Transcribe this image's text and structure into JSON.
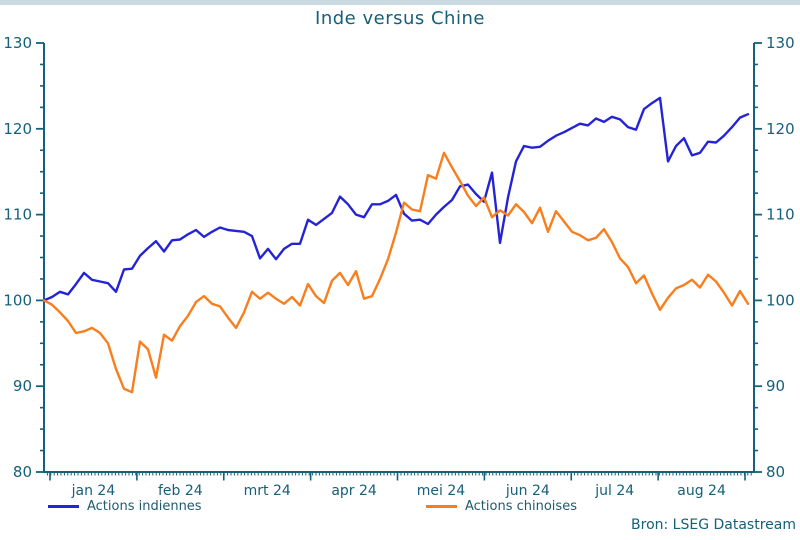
{
  "title": "Inde versus Chine",
  "source": "Bron: LSEG Datastream",
  "colors": {
    "text_teal": "#15607A",
    "axis_teal": "#15607A",
    "legend_text": "#1E5A70",
    "top_band": "#CBD9E2",
    "background": "#FFFFFF",
    "india_blue": "#2424D6",
    "china_orange": "#F87E1E"
  },
  "legend": {
    "items": [
      {
        "label": "Actions indiennes",
        "color": "#2424D6"
      },
      {
        "label": "Actions chinoises",
        "color": "#F87E1E"
      }
    ]
  },
  "chart_data": {
    "type": "line",
    "title": "Inde versus Chine",
    "subtitle": "",
    "xlabel": "",
    "ylabel": "",
    "index_base": 100,
    "ylim": [
      80,
      130
    ],
    "y_ticks": [
      80,
      90,
      100,
      110,
      120,
      130
    ],
    "y_minor_step": 2.5,
    "dual_axis_labels": true,
    "grid": false,
    "legend_position": "bottom",
    "x_tick_labels": [
      "jan 24",
      "feb 24",
      "mrt 24",
      "apr 24",
      "mei 24",
      "jun 24",
      "jul 24",
      "aug 24"
    ],
    "series": [
      {
        "name": "Actions indiennes",
        "color": "#2424D6",
        "values": [
          100.0,
          100.4,
          101.0,
          100.7,
          101.9,
          103.2,
          102.4,
          102.2,
          102.0,
          101.0,
          103.6,
          103.7,
          105.2,
          106.1,
          106.9,
          105.7,
          107.0,
          107.1,
          107.7,
          108.2,
          107.4,
          108.0,
          108.5,
          108.2,
          108.1,
          108.0,
          107.5,
          104.9,
          106.0,
          104.8,
          106.0,
          106.6,
          106.6,
          109.4,
          108.8,
          109.5,
          110.2,
          112.1,
          111.2,
          110.0,
          109.7,
          111.2,
          111.2,
          111.6,
          112.3,
          110.1,
          109.3,
          109.4,
          108.9,
          110.0,
          110.9,
          111.7,
          113.3,
          113.5,
          112.4,
          111.5,
          114.9,
          106.7,
          112.0,
          116.2,
          118.0,
          117.8,
          117.9,
          118.6,
          119.2,
          119.6,
          120.1,
          120.6,
          120.4,
          121.2,
          120.8,
          121.4,
          121.1,
          120.2,
          119.9,
          122.3,
          123.0,
          123.6,
          116.2,
          118.0,
          118.9,
          116.9,
          117.2,
          118.5,
          118.4,
          119.2,
          120.2,
          121.3,
          121.7
        ]
      },
      {
        "name": "Actions chinoises",
        "color": "#F87E1E",
        "values": [
          100.0,
          99.5,
          98.6,
          97.6,
          96.2,
          96.4,
          96.8,
          96.2,
          95.0,
          92.0,
          89.7,
          89.3,
          95.2,
          94.3,
          91.0,
          96.0,
          95.3,
          97.0,
          98.2,
          99.8,
          100.5,
          99.6,
          99.3,
          98.0,
          96.8,
          98.6,
          101.0,
          100.2,
          100.9,
          100.2,
          99.6,
          100.4,
          99.4,
          101.9,
          100.5,
          99.7,
          102.3,
          103.2,
          101.8,
          103.4,
          100.2,
          100.5,
          102.5,
          104.8,
          107.9,
          111.4,
          110.6,
          110.4,
          114.6,
          114.2,
          117.2,
          115.5,
          113.9,
          112.2,
          111.0,
          112.0,
          109.7,
          110.5,
          109.9,
          111.2,
          110.3,
          109.0,
          110.8,
          108.0,
          110.4,
          109.2,
          108.0,
          107.6,
          107.0,
          107.3,
          108.3,
          106.8,
          104.9,
          103.9,
          102.0,
          102.9,
          100.8,
          98.9,
          100.3,
          101.4,
          101.8,
          102.4,
          101.5,
          103.0,
          102.2,
          100.9,
          99.4,
          101.1,
          99.6
        ]
      }
    ]
  }
}
